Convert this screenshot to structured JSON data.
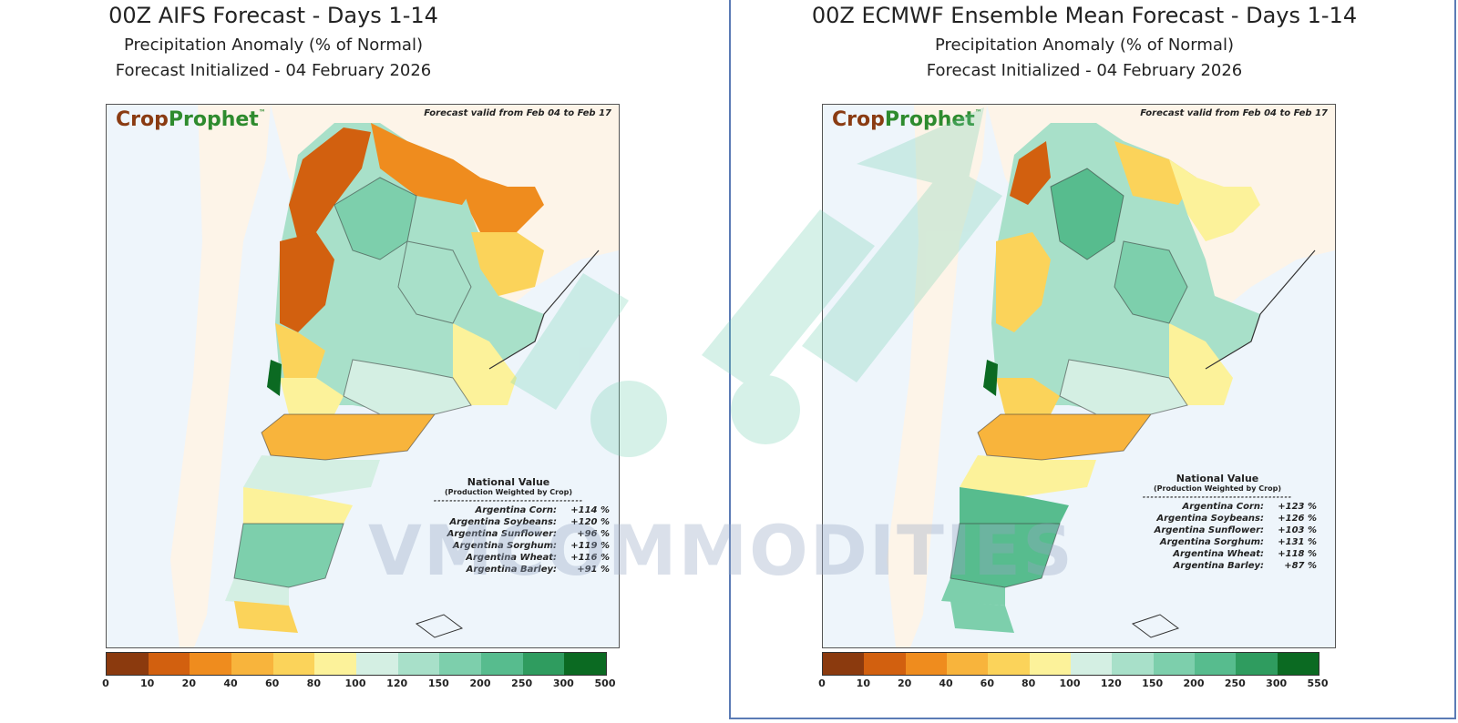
{
  "panels": [
    {
      "title": "00Z AIFS Forecast  -  Days 1-14",
      "subtitle": "Precipitation Anomaly (% of Normal)",
      "initialized": "Forecast Initialized - 04 February 2026",
      "logo": {
        "crop": "Crop",
        "prophet": "Prophet",
        "tm": "™"
      },
      "valid": "Forecast valid from Feb 04 to Feb 17",
      "national": {
        "heading": "National Value",
        "subheading": "(Production Weighted by Crop)",
        "separator": "--------------------------------------",
        "rows": [
          {
            "label": "Argentina Corn:",
            "value": "+114 %"
          },
          {
            "label": "Argentina Soybeans:",
            "value": "+120 %"
          },
          {
            "label": "Argentina Sunflower:",
            "value": "+96 %"
          },
          {
            "label": "Argentina Sorghum:",
            "value": "+119 %"
          },
          {
            "label": "Argentina Wheat:",
            "value": "+116 %"
          },
          {
            "label": "Argentina Barley:",
            "value": "+91 %"
          }
        ]
      },
      "colorbar_ticks": [
        "0",
        "10",
        "20",
        "40",
        "60",
        "80",
        "100",
        "120",
        "150",
        "200",
        "250",
        "300",
        "500"
      ]
    },
    {
      "title": "00Z ECMWF Ensemble Mean Forecast  -  Days 1-14",
      "subtitle": "Precipitation Anomaly (% of Normal)",
      "initialized": "Forecast Initialized - 04 February 2026",
      "logo": {
        "crop": "Crop",
        "prophet": "Prophet",
        "tm": "™"
      },
      "valid": "Forecast valid from Feb 04 to Feb 17",
      "national": {
        "heading": "National Value",
        "subheading": "(Production Weighted by Crop)",
        "separator": "--------------------------------------",
        "rows": [
          {
            "label": "Argentina Corn:",
            "value": "+123 %"
          },
          {
            "label": "Argentina Soybeans:",
            "value": "+126 %"
          },
          {
            "label": "Argentina Sunflower:",
            "value": "+103 %"
          },
          {
            "label": "Argentina Sorghum:",
            "value": "+131 %"
          },
          {
            "label": "Argentina Wheat:",
            "value": "+118 %"
          },
          {
            "label": "Argentina Barley:",
            "value": "+87 %"
          }
        ]
      },
      "colorbar_ticks": [
        "0",
        "10",
        "20",
        "40",
        "60",
        "80",
        "100",
        "120",
        "150",
        "200",
        "250",
        "300",
        "550"
      ]
    }
  ],
  "colorbar_colors": [
    "#8b3a0e",
    "#d2600f",
    "#ef8c1e",
    "#f8b43c",
    "#fbd35a",
    "#fcf29a",
    "#d4efe3",
    "#a8e0c9",
    "#7dcfac",
    "#57bc8e",
    "#2f9c5f",
    "#0b6a22"
  ],
  "watermark": "VMCOMMODITIES"
}
